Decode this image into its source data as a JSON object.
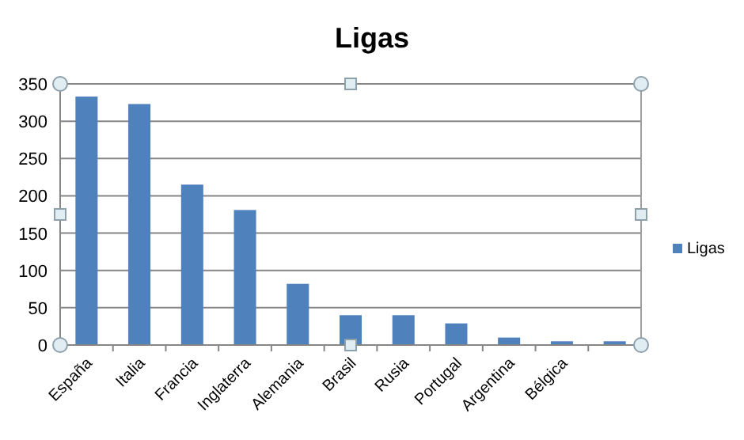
{
  "chart_data": {
    "type": "bar",
    "title": "Ligas",
    "categories": [
      "España",
      "Italia",
      "Francia",
      "Inglaterra",
      "Alemania",
      "Brasil",
      "Rusia",
      "Portugal",
      "Argentina",
      "Bélgica",
      null
    ],
    "series": [
      {
        "name": "Ligas",
        "color": "#4f81bd",
        "values": [
          333,
          323,
          215,
          181,
          82,
          40,
          40,
          29,
          10,
          5,
          5
        ]
      }
    ],
    "ylim": [
      0,
      350
    ],
    "yticks": [
      0,
      50,
      100,
      150,
      200,
      250,
      300,
      350
    ],
    "grid": "y",
    "legend": "right"
  }
}
